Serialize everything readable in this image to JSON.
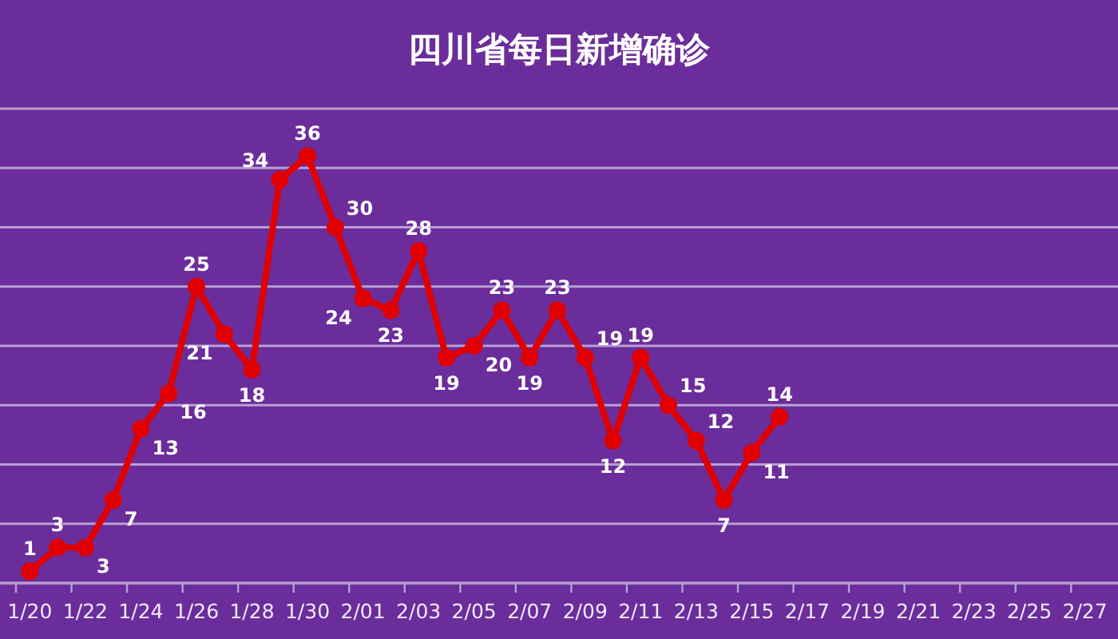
{
  "chart_data": {
    "type": "line",
    "title": "四川省每日新增确诊",
    "categories": [
      "1/20",
      null,
      "1/22",
      null,
      "1/24",
      null,
      "1/26",
      null,
      "1/28",
      null,
      "1/30",
      null,
      "2/01",
      null,
      "2/03",
      null,
      "2/05",
      null,
      "2/07",
      null,
      "2/09",
      null,
      "2/11",
      null,
      "2/13",
      null,
      "2/15",
      null,
      "2/17",
      null,
      "2/19",
      null,
      "2/21",
      null,
      "2/23",
      null,
      "2/25",
      null,
      "2/27"
    ],
    "series": [
      {
        "color": "#e00000",
        "values": [
          1,
          3,
          3,
          7,
          13,
          16,
          25,
          21,
          18,
          34,
          36,
          30,
          24,
          23,
          28,
          19,
          20,
          23,
          19,
          23,
          19,
          12,
          19,
          15,
          12,
          7,
          11,
          14,
          null,
          null,
          null,
          null,
          null,
          null,
          null,
          null,
          null,
          null,
          null
        ]
      }
    ],
    "ylim": [
      0,
      40
    ],
    "yticks": [
      {
        "value": 0,
        "label": null
      },
      {
        "value": 5,
        "label": null
      },
      {
        "value": 10,
        "label": null
      },
      {
        "value": 15,
        "label": null
      },
      {
        "value": 20,
        "label": null
      },
      {
        "value": 25,
        "label": null
      },
      {
        "value": 30,
        "label": null
      },
      {
        "value": 35,
        "label": null
      },
      {
        "value": 40,
        "label": null
      }
    ],
    "grid": "y",
    "tick_labels": "x",
    "marker": "circle",
    "line_style": "solid",
    "data_labels": true
  }
}
